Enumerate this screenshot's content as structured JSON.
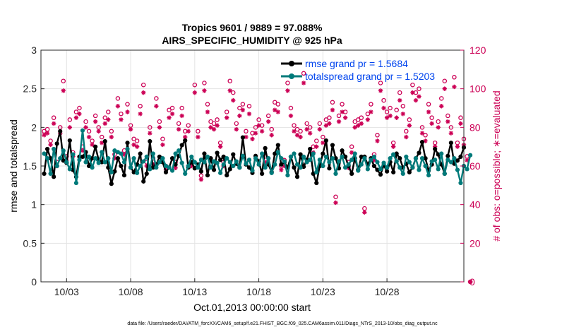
{
  "chart_data": {
    "type": "line",
    "title_line1": "Tropics 9601 / 9889 = 97.088%",
    "title_line2": "AIRS_SPECIFIC_HUMIDITY @ 925 hPa",
    "xlabel": "Oct.01,2013 00:00:00 start",
    "ylabel": "rmse and totalspread",
    "ylabel_right": "# of obs: o=possible; ∗=evaluated",
    "xlim": [
      1,
      34
    ],
    "ylim": [
      0,
      3
    ],
    "ylim_right": [
      0,
      120
    ],
    "x_ticks": [
      {
        "x": 3,
        "label": "10/03"
      },
      {
        "x": 8,
        "label": "10/08"
      },
      {
        "x": 13,
        "label": "10/13"
      },
      {
        "x": 18,
        "label": "10/18"
      },
      {
        "x": 23,
        "label": "10/23"
      },
      {
        "x": 28,
        "label": "10/28"
      }
    ],
    "y_ticks": [
      {
        "v": 0,
        "label": "0"
      },
      {
        "v": 0.5,
        "label": "0.5"
      },
      {
        "v": 1,
        "label": "1"
      },
      {
        "v": 1.5,
        "label": "1.5"
      },
      {
        "v": 2,
        "label": "2"
      },
      {
        "v": 2.5,
        "label": "2.5"
      },
      {
        "v": 3,
        "label": "3"
      }
    ],
    "y_ticks_right": [
      {
        "v": 0,
        "label": "0"
      },
      {
        "v": 20,
        "label": "20"
      },
      {
        "v": 40,
        "label": "40"
      },
      {
        "v": 60,
        "label": "60"
      },
      {
        "v": 80,
        "label": "80"
      },
      {
        "v": 100,
        "label": "100"
      },
      {
        "v": 120,
        "label": "120"
      }
    ],
    "x_start": 1.25,
    "x_step": 0.25,
    "series": [
      {
        "name": "rmse grand pr = 1.5684",
        "color": "#000000",
        "values": [
          1.4,
          1.72,
          1.6,
          1.36,
          1.79,
          1.95,
          1.57,
          1.54,
          1.83,
          1.45,
          1.36,
          1.62,
          1.62,
          1.68,
          1.5,
          1.6,
          1.75,
          1.58,
          1.55,
          1.82,
          1.48,
          1.27,
          1.43,
          1.6,
          1.5,
          1.38,
          1.8,
          1.48,
          1.42,
          1.52,
          1.66,
          1.3,
          1.4,
          1.82,
          1.48,
          1.52,
          1.62,
          1.55,
          1.42,
          1.48,
          1.6,
          1.52,
          1.63,
          1.77,
          1.83,
          1.48,
          1.55,
          1.47,
          1.52,
          1.43,
          1.66,
          1.38,
          1.6,
          1.45,
          1.67,
          1.58,
          1.62,
          1.38,
          1.46,
          1.65,
          1.53,
          1.48,
          1.87,
          1.52,
          1.48,
          1.41,
          1.63,
          1.56,
          1.4,
          1.73,
          1.52,
          1.42,
          1.66,
          1.77,
          1.52,
          1.55,
          1.48,
          1.62,
          1.48,
          1.36,
          1.65,
          1.49,
          1.58,
          1.72,
          1.4,
          1.28,
          1.5,
          1.66,
          1.83,
          1.47,
          1.77,
          1.6,
          1.47,
          1.7,
          1.62,
          1.5,
          1.4,
          1.6,
          1.45,
          1.62,
          1.62,
          1.52,
          1.6,
          1.5,
          1.45,
          1.39,
          1.51,
          1.43,
          1.55,
          1.42,
          1.66,
          1.6,
          1.48,
          1.53,
          1.42,
          1.48,
          1.6,
          1.67,
          1.81,
          1.6,
          1.44,
          1.52,
          1.72,
          1.65,
          1.52,
          1.4,
          1.63,
          1.8,
          1.53,
          1.57,
          1.62,
          1.74
        ]
      },
      {
        "name": "totalspread grand pr = 1.5203",
        "color": "#007a7a",
        "values": [
          1.66,
          1.6,
          1.4,
          1.72,
          1.5,
          1.6,
          1.7,
          1.55,
          1.46,
          1.65,
          1.28,
          1.58,
          1.96,
          1.55,
          1.62,
          1.48,
          1.6,
          1.54,
          1.68,
          1.55,
          1.6,
          1.42,
          1.7,
          1.68,
          1.66,
          1.55,
          1.72,
          1.48,
          1.6,
          1.41,
          1.5,
          1.56,
          1.62,
          1.46,
          1.66,
          1.48,
          1.55,
          1.6,
          1.5,
          1.48,
          1.44,
          1.66,
          1.7,
          1.54,
          1.4,
          1.5,
          1.62,
          1.55,
          1.48,
          1.58,
          1.55,
          1.62,
          1.48,
          1.56,
          1.54,
          1.41,
          1.52,
          1.6,
          1.55,
          1.5,
          1.56,
          1.48,
          1.63,
          1.53,
          1.58,
          1.44,
          1.6,
          1.52,
          1.66,
          1.48,
          1.6,
          1.41,
          1.52,
          1.68,
          1.6,
          1.56,
          1.38,
          1.62,
          1.66,
          1.52,
          1.48,
          1.62,
          1.55,
          1.58,
          1.66,
          1.42,
          1.58,
          1.5,
          1.62,
          1.55,
          1.6,
          1.4,
          1.56,
          1.62,
          1.48,
          1.52,
          1.58,
          1.66,
          1.44,
          1.52,
          1.6,
          1.46,
          1.58,
          1.62,
          1.55,
          1.46,
          1.54,
          1.48,
          1.6,
          1.65,
          1.56,
          1.48,
          1.4,
          1.62,
          1.55,
          1.48,
          1.6,
          1.45,
          1.6,
          1.5,
          1.38,
          1.56,
          1.58,
          1.46,
          1.66,
          1.4,
          1.58,
          1.55,
          1.6,
          1.45,
          1.28,
          1.5,
          1.46,
          1.64
        ]
      }
    ],
    "possible_obs": [
      78,
      79,
      73,
      85,
      62,
      80,
      104,
      65,
      84,
      67,
      88,
      90,
      70,
      83,
      78,
      73,
      86,
      80,
      75,
      85,
      88,
      78,
      66,
      95,
      87,
      68,
      92,
      81,
      74,
      73,
      91,
      102,
      62,
      80,
      64,
      95,
      83,
      74,
      60,
      89,
      90,
      62,
      82,
      90,
      78,
      81,
      62,
      102,
      78,
      55,
      103,
      92,
      83,
      82,
      84,
      72,
      62,
      88,
      104,
      98,
      82,
      90,
      92,
      78,
      91,
      77,
      80,
      84,
      81,
      65,
      86,
      79,
      93,
      92,
      60,
      63,
      103,
      90,
      81,
      79,
      78,
      108,
      82,
      80,
      70,
      73,
      82,
      75,
      84,
      85,
      93,
      44,
      86,
      92,
      88,
      62,
      70,
      83,
      84,
      85,
      38,
      87,
      92,
      66,
      76,
      103,
      94,
      88,
      90,
      72,
      89,
      98,
      91,
      78,
      84,
      102,
      98,
      100,
      80,
      76,
      92,
      85,
      72,
      83,
      95,
      104,
      86,
      80,
      106,
      72,
      85,
      74,
      65,
      0
    ],
    "evaluated_obs": [
      76,
      77,
      71,
      82,
      60,
      77,
      99,
      63,
      80,
      65,
      85,
      87,
      68,
      80,
      75,
      71,
      83,
      78,
      72,
      82,
      84,
      75,
      64,
      91,
      84,
      66,
      88,
      79,
      71,
      70,
      87,
      98,
      60,
      77,
      61,
      91,
      80,
      71,
      58,
      85,
      87,
      59,
      79,
      86,
      75,
      78,
      60,
      98,
      75,
      53,
      99,
      88,
      80,
      79,
      81,
      70,
      60,
      85,
      99,
      94,
      79,
      86,
      89,
      75,
      87,
      74,
      77,
      81,
      78,
      62,
      83,
      76,
      89,
      88,
      58,
      60,
      99,
      86,
      78,
      76,
      75,
      103,
      79,
      77,
      67,
      70,
      79,
      72,
      81,
      82,
      89,
      41,
      83,
      88,
      85,
      59,
      67,
      80,
      81,
      82,
      36,
      84,
      88,
      63,
      73,
      99,
      90,
      85,
      86,
      70,
      85,
      94,
      87,
      75,
      81,
      98,
      94,
      96,
      77,
      73,
      88,
      82,
      70,
      80,
      91,
      100,
      83,
      77,
      101,
      70,
      82,
      71,
      63,
      0
    ],
    "legend": [
      {
        "label": "rmse grand pr = 1.5684",
        "color": "#000000"
      },
      {
        "label": "totalspread grand pr = 1.5203",
        "color": "#007a7a"
      }
    ],
    "obs_color": "#cc0055",
    "legend_position": "top-right",
    "grid": true
  },
  "footer": "data file: /Users/raeder/DAI/ATM_forcXX/CAM6_setup/f.e21.FHIST_BGC.f09_025.CAM6assim.011/Diags_NTrS_2013-10/obs_diag_output.nc"
}
